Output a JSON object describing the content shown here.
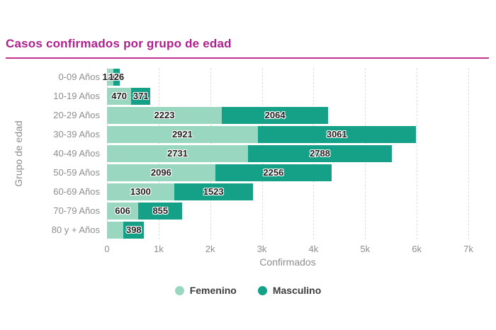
{
  "title": "Casos confirmados por grupo de edad",
  "colors": {
    "title": "#b0208c",
    "divider": "#c5318f",
    "femenino": "#99d7c1",
    "masculino": "#14a188",
    "axis_text": "#8e8e8e",
    "gridline": "#dcdcdc"
  },
  "chart_data": {
    "type": "bar",
    "orientation": "horizontal",
    "stacked": true,
    "grid": true,
    "legend_position": "bottom",
    "xlabel": "Confirmados",
    "ylabel": "Grupo de edad",
    "xlim": [
      0,
      7000
    ],
    "x_ticks": [
      "0",
      "1k",
      "2k",
      "3k",
      "4k",
      "5k",
      "6k",
      "7k"
    ],
    "x_tick_values": [
      0,
      1000,
      2000,
      3000,
      4000,
      5000,
      6000,
      7000
    ],
    "categories": [
      "0-09 Años",
      "10-19 Años",
      "20-29 Años",
      "30-39 Años",
      "40-49 Años",
      "50-59 Años",
      "60-69 Años",
      "70-79 Años",
      "80 y + Años"
    ],
    "series": [
      {
        "name": "Femenino",
        "color": "#99d7c1",
        "values": [
          120,
          470,
          2223,
          2921,
          2731,
          2096,
          1300,
          606,
          320
        ],
        "labels": [
          "120",
          "470",
          "2223",
          "2921",
          "2731",
          "2096",
          "1300",
          "606",
          ""
        ]
      },
      {
        "name": "Masculino",
        "color": "#14a188",
        "values": [
          126,
          371,
          2064,
          3061,
          2788,
          2256,
          1523,
          855,
          398
        ],
        "labels": [
          "126",
          "371",
          "2064",
          "3061",
          "2788",
          "2256",
          "1523",
          "855",
          "398"
        ]
      }
    ]
  }
}
